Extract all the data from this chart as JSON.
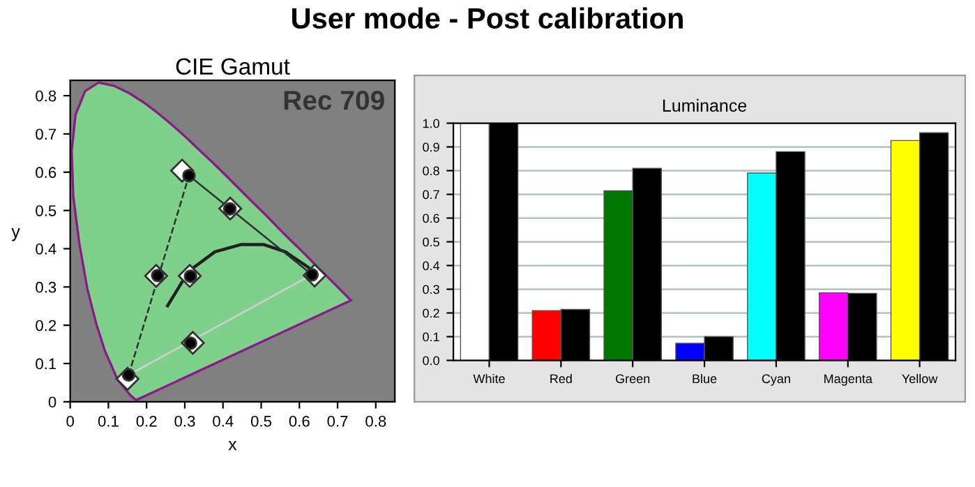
{
  "chart_data": [
    {
      "type": "scatter",
      "title": "User mode - Post calibration",
      "subtitle": "CIE Gamut",
      "xlabel": "x",
      "ylabel": "y",
      "annotations": [
        "Rec 709"
      ],
      "xlim": [
        0,
        0.85
      ],
      "ylim": [
        0,
        0.84
      ],
      "xticks": [
        0,
        {
          "value": 0.1,
          "label": "0.1"
        },
        {
          "value": 0.2,
          "label": "0.2"
        },
        {
          "value": 0.3,
          "label": "0.3"
        },
        {
          "value": 0.4,
          "label": "0.4"
        },
        {
          "value": 0.5,
          "label": "0.5"
        },
        {
          "value": 0.6,
          "label": "0.6"
        },
        {
          "value": 0.7,
          "label": "0.7"
        },
        {
          "value": 0.8,
          "label": "0.8"
        }
      ],
      "yticks": [
        0,
        {
          "value": 0.1,
          "label": "0.1"
        },
        {
          "value": 0.2,
          "label": "0.2"
        },
        {
          "value": 0.3,
          "label": "0.3"
        },
        {
          "value": 0.4,
          "label": "0.4"
        },
        {
          "value": 0.5,
          "label": "0.5"
        },
        {
          "value": 0.6,
          "label": "0.6"
        },
        {
          "value": 0.7,
          "label": "0.7"
        },
        {
          "value": 0.8,
          "label": "0.8"
        }
      ],
      "grid": false,
      "series": [
        {
          "type": "area",
          "color": "#7fd08a",
          "x": [
            0.174,
            0.169,
            0.157,
            0.124,
            0.091,
            0.069,
            0.045,
            0.024,
            0.008,
            0.004,
            0.014,
            0.039,
            0.074,
            0.114,
            0.155,
            0.193,
            0.23,
            0.266,
            0.302,
            0.337,
            0.373,
            0.409,
            0.444,
            0.479,
            0.513,
            0.545,
            0.575,
            0.603,
            0.627,
            0.648,
            0.666,
            0.68,
            0.692,
            0.701,
            0.735,
            0.174
          ],
          "values": [
            0.005,
            0.007,
            0.018,
            0.058,
            0.133,
            0.201,
            0.295,
            0.413,
            0.538,
            0.655,
            0.75,
            0.812,
            0.834,
            0.826,
            0.806,
            0.782,
            0.754,
            0.724,
            0.692,
            0.659,
            0.625,
            0.59,
            0.555,
            0.52,
            0.487,
            0.454,
            0.424,
            0.397,
            0.373,
            0.351,
            0.334,
            0.32,
            0.308,
            0.299,
            0.265,
            0.005
          ]
        },
        {
          "type": "line",
          "color": "#202020",
          "x": [
            0.255,
            0.31,
            0.379,
            0.448,
            0.506,
            0.563,
            0.621,
            0.644
          ],
          "values": [
            0.251,
            0.341,
            0.392,
            0.411,
            0.411,
            0.392,
            0.353,
            0.335
          ]
        },
        {
          "type": "line",
          "color": "#303030",
          "x": [
            0.311,
            0.633
          ],
          "values": [
            0.591,
            0.332
          ]
        },
        {
          "type": "line",
          "color": "#303030",
          "line_style": "dashed",
          "x": [
            0.153,
            0.311
          ],
          "values": [
            0.07,
            0.591
          ]
        },
        {
          "type": "line",
          "color": "#d0d0d0",
          "x": [
            0.153,
            0.633
          ],
          "values": [
            0.07,
            0.332
          ]
        },
        {
          "type": "scatter",
          "marker": "diamond",
          "color": "#ffffff",
          "x": [
            0.64,
            0.293,
            0.15,
            0.313,
            0.225,
            0.321,
            0.419
          ],
          "values": [
            0.33,
            0.604,
            0.06,
            0.329,
            0.329,
            0.154,
            0.505
          ]
        },
        {
          "type": "scatter",
          "marker": "circle",
          "color": "#000000",
          "x": [
            0.633,
            0.311,
            0.153,
            0.315,
            0.229,
            0.315,
            0.418
          ],
          "values": [
            0.332,
            0.591,
            0.07,
            0.328,
            0.33,
            0.153,
            0.504
          ]
        }
      ]
    },
    {
      "type": "bar",
      "title": "Luminance",
      "categories": [
        "White",
        "Red",
        "Green",
        "Blue",
        "Cyan",
        "Magenta",
        "Yellow"
      ],
      "ylim": [
        0,
        1
      ],
      "yticks": [
        {
          "value": 0,
          "label": "0.0"
        },
        {
          "value": 0.1,
          "label": "0.1"
        },
        {
          "value": 0.2,
          "label": "0.2"
        },
        {
          "value": 0.3,
          "label": "0.3"
        },
        {
          "value": 0.4,
          "label": "0.4"
        },
        {
          "value": 0.5,
          "label": "0.5"
        },
        {
          "value": 0.6,
          "label": "0.6"
        },
        {
          "value": 0.7,
          "label": "0.7"
        },
        {
          "value": 0.8,
          "label": "0.8"
        },
        {
          "value": 0.9,
          "label": "0.9"
        },
        {
          "value": 1,
          "label": "1.0"
        }
      ],
      "grid": "y",
      "series": [
        {
          "colors": [
            "#ffffff",
            "#ff0000",
            "#007700",
            "#0000ff",
            "#00ffff",
            "#ff00ff",
            "#ffff00"
          ],
          "values": [
            1.0,
            0.21,
            0.715,
            0.072,
            0.79,
            0.285,
            0.927
          ]
        },
        {
          "color": "#000000",
          "values": [
            1.0,
            0.215,
            0.81,
            0.1,
            0.88,
            0.283,
            0.96
          ]
        }
      ]
    }
  ]
}
